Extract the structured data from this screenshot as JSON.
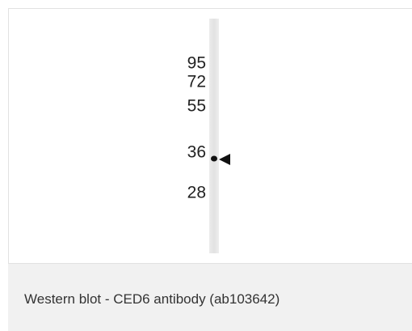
{
  "image": {
    "markers": [
      "95",
      "72",
      "55",
      "36",
      "28"
    ]
  },
  "caption": "Western blot - CED6 antibody (ab103642)"
}
